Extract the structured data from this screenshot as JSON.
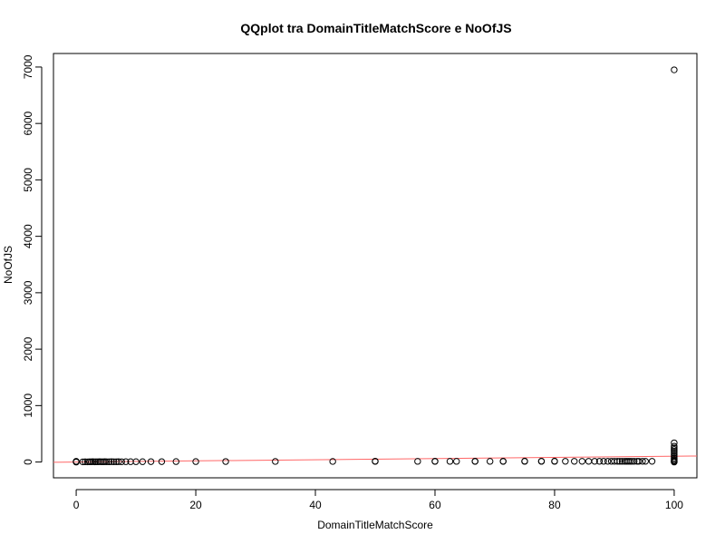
{
  "chart_data": {
    "type": "scatter",
    "title": "QQplot tra DomainTitleMatchScore e NoOfJS",
    "xlabel": "DomainTitleMatchScore",
    "ylabel": "NoOfJS",
    "xlim": [
      -3.8,
      103.8
    ],
    "ylim": [
      -280,
      7240
    ],
    "x_ticks": [
      0,
      20,
      40,
      60,
      80,
      100
    ],
    "y_ticks": [
      0,
      1000,
      2000,
      3000,
      4000,
      5000,
      6000,
      7000
    ],
    "grid": false,
    "reference_line": {
      "color": "#ff6666",
      "x": [
        -3.8,
        103.8
      ],
      "y": [
        -4,
        106
      ]
    },
    "marker": "open-circle",
    "points": [
      [
        0,
        0
      ],
      [
        0,
        2
      ],
      [
        0,
        5
      ],
      [
        0,
        8
      ],
      [
        0,
        12
      ],
      [
        1.1,
        3
      ],
      [
        1.5,
        4
      ],
      [
        1.9,
        3
      ],
      [
        2.2,
        5
      ],
      [
        2.5,
        4
      ],
      [
        2.8,
        6
      ],
      [
        3.1,
        3
      ],
      [
        3.3,
        5
      ],
      [
        3.6,
        4
      ],
      [
        3.9,
        6
      ],
      [
        4.2,
        5
      ],
      [
        4.5,
        4
      ],
      [
        4.8,
        6
      ],
      [
        5.1,
        5
      ],
      [
        5.5,
        4
      ],
      [
        5.9,
        6
      ],
      [
        6.3,
        5
      ],
      [
        6.7,
        5
      ],
      [
        7.1,
        6
      ],
      [
        7.6,
        5
      ],
      [
        8.3,
        6
      ],
      [
        9.1,
        6
      ],
      [
        10,
        6
      ],
      [
        11.1,
        6
      ],
      [
        12.5,
        7
      ],
      [
        14.3,
        7
      ],
      [
        16.7,
        8
      ],
      [
        20,
        8
      ],
      [
        25,
        9
      ],
      [
        33.3,
        10
      ],
      [
        42.9,
        10
      ],
      [
        50,
        11
      ],
      [
        50,
        15
      ],
      [
        57.1,
        12
      ],
      [
        60,
        11
      ],
      [
        60,
        14
      ],
      [
        62.5,
        12
      ],
      [
        63.6,
        12
      ],
      [
        66.7,
        11
      ],
      [
        66.7,
        14
      ],
      [
        69.2,
        12
      ],
      [
        71.4,
        11
      ],
      [
        71.4,
        14
      ],
      [
        75,
        12
      ],
      [
        75,
        16
      ],
      [
        77.8,
        12
      ],
      [
        77.8,
        15
      ],
      [
        80,
        12
      ],
      [
        80,
        16
      ],
      [
        81.8,
        13
      ],
      [
        83.3,
        13
      ],
      [
        84.6,
        13
      ],
      [
        85.7,
        13
      ],
      [
        86.7,
        13
      ],
      [
        87.5,
        13
      ],
      [
        88.2,
        13
      ],
      [
        88.9,
        13
      ],
      [
        89.5,
        13
      ],
      [
        90,
        13
      ],
      [
        90.5,
        13
      ],
      [
        90.9,
        13
      ],
      [
        91.3,
        13
      ],
      [
        91.7,
        13
      ],
      [
        92,
        13
      ],
      [
        92.3,
        13
      ],
      [
        92.6,
        13
      ],
      [
        92.9,
        13
      ],
      [
        93.3,
        13
      ],
      [
        93.8,
        13
      ],
      [
        94.1,
        13
      ],
      [
        94.7,
        13
      ],
      [
        95.2,
        13
      ],
      [
        96.3,
        13
      ],
      [
        100,
        0
      ],
      [
        100,
        10
      ],
      [
        100,
        25
      ],
      [
        100,
        45
      ],
      [
        100,
        70
      ],
      [
        100,
        100
      ],
      [
        100,
        130
      ],
      [
        100,
        160
      ],
      [
        100,
        190
      ],
      [
        100,
        220
      ],
      [
        100,
        250
      ],
      [
        100,
        280
      ],
      [
        100,
        340
      ],
      [
        100,
        6950
      ]
    ]
  }
}
